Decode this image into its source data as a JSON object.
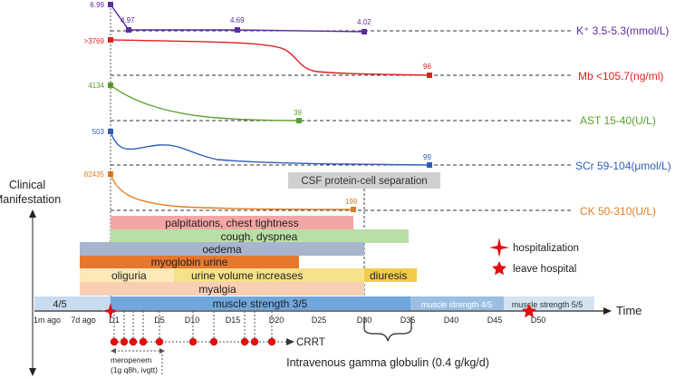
{
  "labs": [
    {
      "label": "K⁺ 3.5-5.3(mmol/L)",
      "color": "#5b2d9e",
      "start_value": "6.99",
      "values": [
        "4.97",
        "4.69",
        "4.02"
      ]
    },
    {
      "label": "Mb <105.7(ng/ml)",
      "color": "#e02020",
      "start_value": ">3769",
      "values": [
        "96"
      ]
    },
    {
      "label": "AST 15-40(U/L)",
      "color": "#5aa02c",
      "start_value": "4134",
      "values": [
        "39"
      ]
    },
    {
      "label": "SCr 59-104(μmol/L)",
      "color": "#2e5fb5",
      "start_value": "503",
      "values": [
        "99"
      ]
    },
    {
      "label": "CK 50-310(U/L)",
      "color": "#e37b22",
      "start_value": "82435",
      "values": [
        "199"
      ]
    }
  ],
  "csf_label": "CSF protein-cell separation",
  "clinical_label_line1": "Clinical",
  "clinical_label_line2": "Manifestation",
  "bars": {
    "palpitations": "palpitations, chest tightness",
    "cough": "cough, dyspnea",
    "oedema": "oedema",
    "myoglobin": "myoglobin urine",
    "oliguria": "oliguria",
    "urine_increase": "urine volume increases",
    "diuresis": "diuresis",
    "myalgia": "myalgia",
    "ms_pre": "4/5",
    "ms3": "muscle strength 3/5",
    "ms4": "muscle strength 4/5",
    "ms5": "muscle strength 5/5"
  },
  "legend": {
    "hospitalization": "hospitalization",
    "leave": "leave hospital"
  },
  "axis": {
    "title": "Time",
    "ticks": [
      "1m ago",
      "7d ago",
      "D1",
      "D5",
      "D10",
      "D15",
      "D20",
      "D25",
      "D30",
      "D35",
      "D40",
      "D45",
      "D50"
    ]
  },
  "crrt_label": "CRRT",
  "meropenem": {
    "line1": "meropenem",
    "line2": "(1g q8h, ivgtt)"
  },
  "ivig_label": "Intravenous gamma globulin (0.4 g/kg/d)",
  "colors": {
    "palpitations": "#f4a6a6",
    "cough": "#b9dfa6",
    "oedema": "#a9b5cc",
    "myoglobin": "#e8772e",
    "oliguria": "#fde9b8",
    "urine_increase": "#f7e08a",
    "diuresis": "#f0cc4a",
    "myalgia": "#f9cfb4",
    "ms_pre": "#c8dcf0",
    "ms3": "#6fa6dc",
    "ms4": "#9bbfe3",
    "ms5": "#d4e4f3",
    "crrt": "#e01010",
    "csf": "#d0d0d0"
  }
}
